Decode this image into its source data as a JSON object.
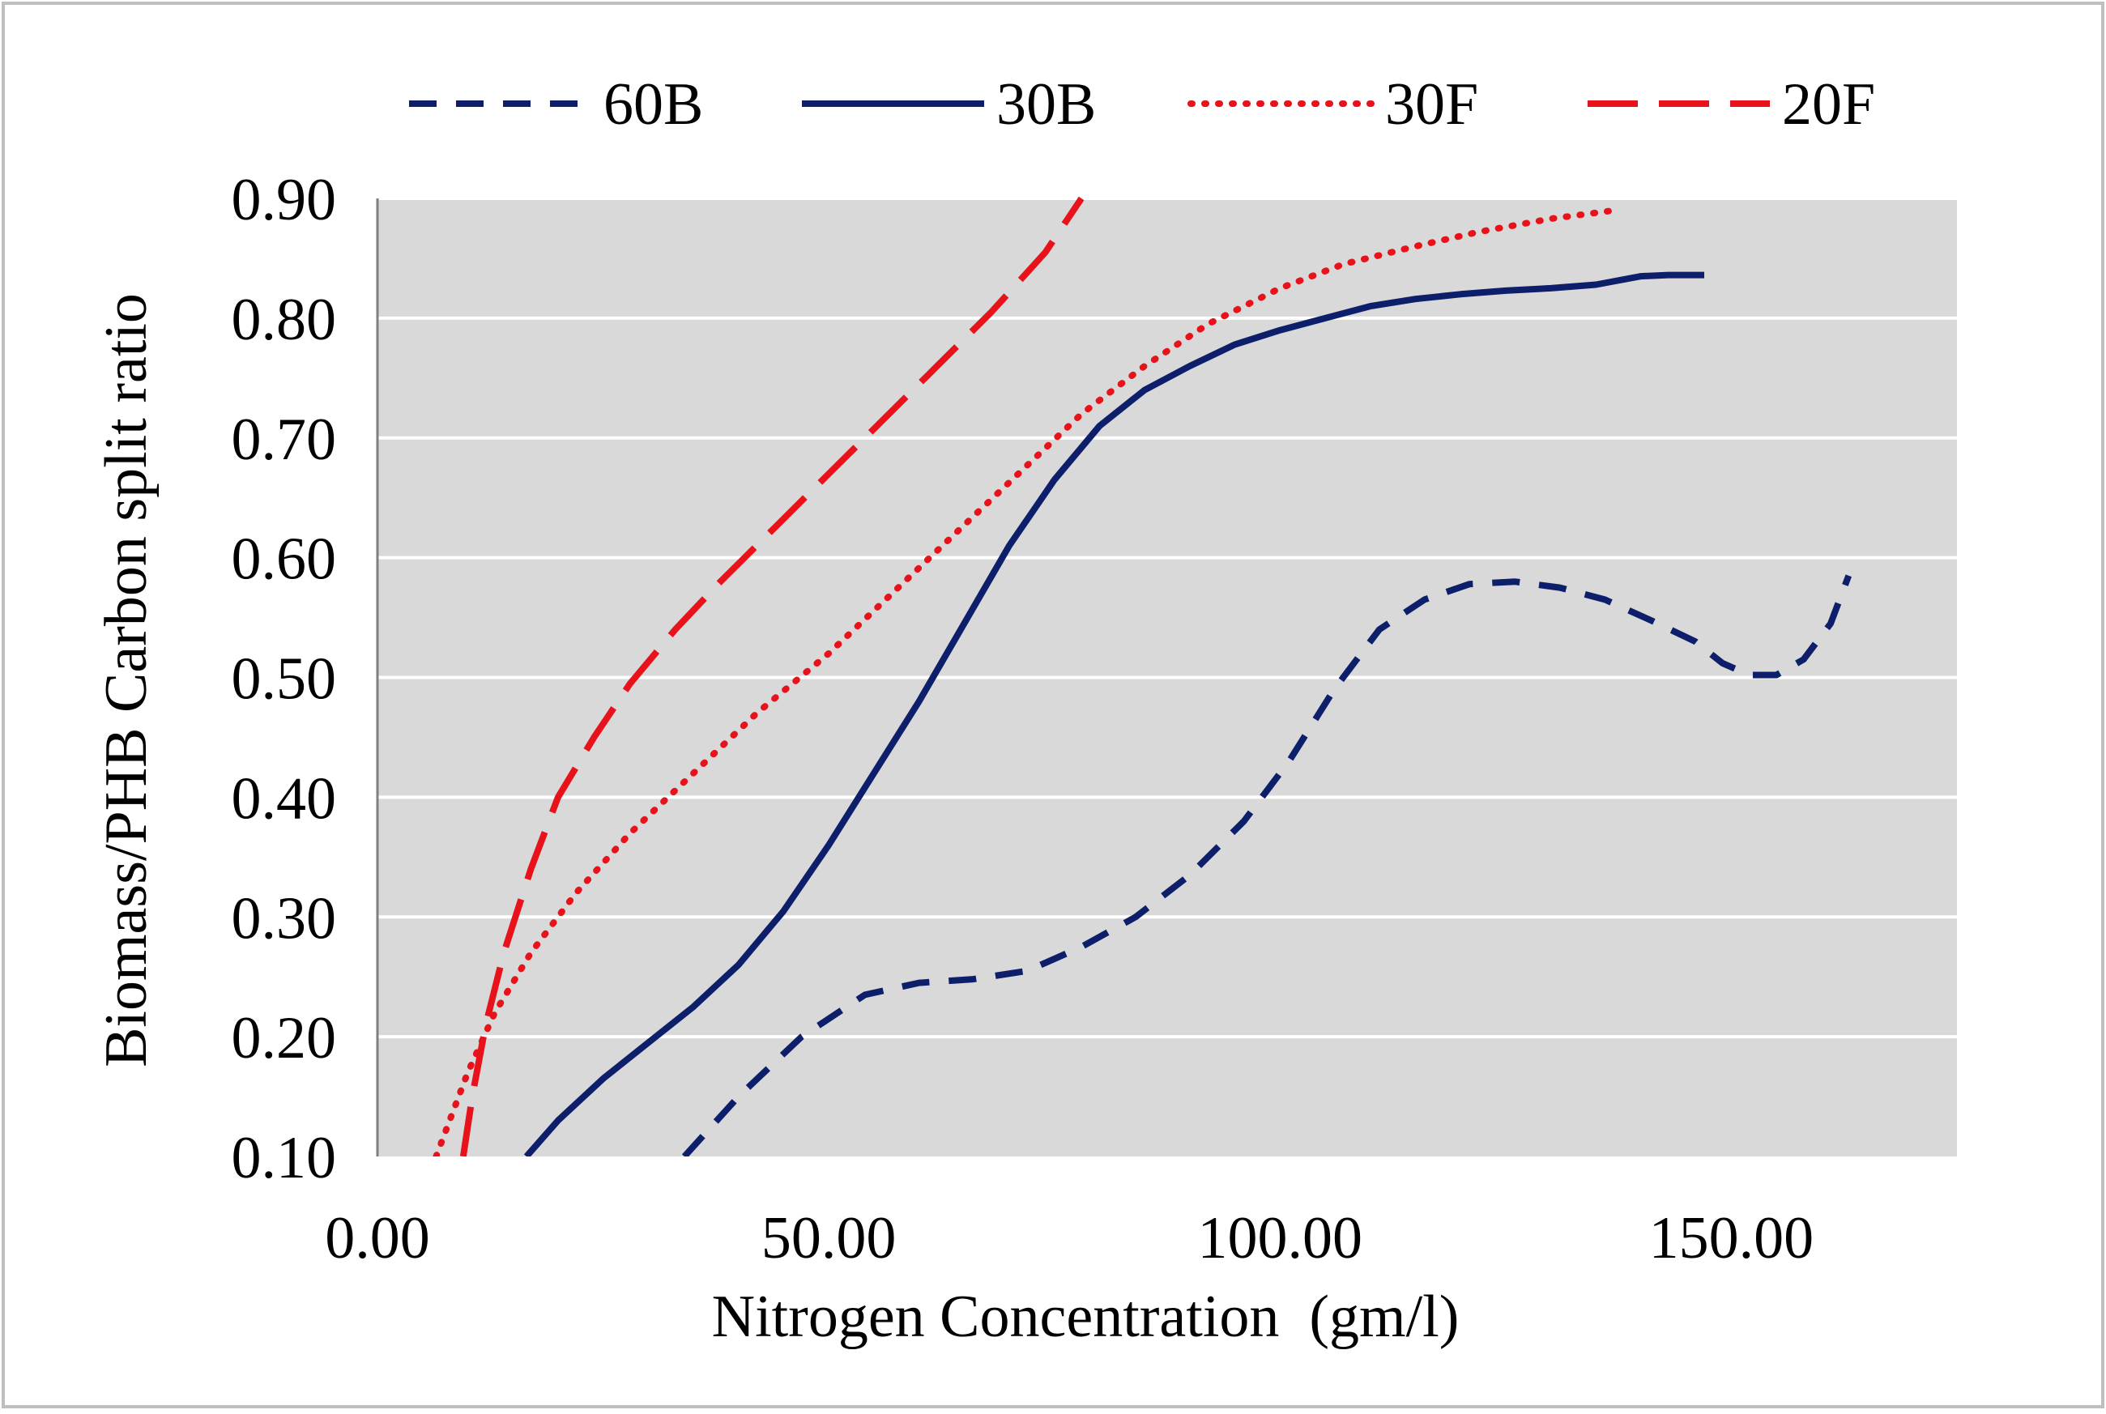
{
  "chart_data": {
    "type": "line",
    "title": "",
    "xlabel": "Nitrogen Concentration  (gm/l)",
    "ylabel": "Biomass/PHB Carbon split ratio",
    "xlim": [
      0,
      175
    ],
    "ylim": [
      0.1,
      0.9
    ],
    "x_ticks": [
      0,
      50,
      100,
      150
    ],
    "x_tick_labels": [
      "0.00",
      "50.00",
      "100.00",
      "150.00"
    ],
    "y_ticks": [
      0.1,
      0.2,
      0.3,
      0.4,
      0.5,
      0.6,
      0.7,
      0.8,
      0.9
    ],
    "y_tick_labels": [
      "0.10",
      "0.20",
      "0.30",
      "0.40",
      "0.50",
      "0.60",
      "0.70",
      "0.80",
      "0.90"
    ],
    "grid": "horizontal",
    "plot_background": "#d9d9d9",
    "legend_position": "top",
    "series": [
      {
        "name": "60B",
        "color": "#0d1f6b",
        "style": "dash",
        "points": [
          [
            34,
            0.1
          ],
          [
            40,
            0.15
          ],
          [
            47,
            0.2
          ],
          [
            54,
            0.235
          ],
          [
            60,
            0.245
          ],
          [
            66,
            0.248
          ],
          [
            72,
            0.255
          ],
          [
            78,
            0.275
          ],
          [
            84,
            0.3
          ],
          [
            90,
            0.335
          ],
          [
            96,
            0.38
          ],
          [
            101,
            0.43
          ],
          [
            106,
            0.49
          ],
          [
            111,
            0.54
          ],
          [
            116,
            0.565
          ],
          [
            121,
            0.578
          ],
          [
            126,
            0.58
          ],
          [
            131,
            0.575
          ],
          [
            136,
            0.565
          ],
          [
            141,
            0.548
          ],
          [
            146,
            0.53
          ],
          [
            149,
            0.512
          ],
          [
            152,
            0.502
          ],
          [
            155,
            0.502
          ],
          [
            158,
            0.515
          ],
          [
            161,
            0.545
          ],
          [
            163,
            0.585
          ]
        ]
      },
      {
        "name": "30B",
        "color": "#0d1f6b",
        "style": "solid",
        "points": [
          [
            16.5,
            0.1
          ],
          [
            20,
            0.13
          ],
          [
            25,
            0.165
          ],
          [
            30,
            0.195
          ],
          [
            35,
            0.225
          ],
          [
            40,
            0.26
          ],
          [
            45,
            0.305
          ],
          [
            50,
            0.36
          ],
          [
            55,
            0.42
          ],
          [
            60,
            0.48
          ],
          [
            65,
            0.545
          ],
          [
            70,
            0.61
          ],
          [
            75,
            0.665
          ],
          [
            80,
            0.71
          ],
          [
            85,
            0.74
          ],
          [
            90,
            0.76
          ],
          [
            95,
            0.778
          ],
          [
            100,
            0.79
          ],
          [
            105,
            0.8
          ],
          [
            110,
            0.81
          ],
          [
            115,
            0.816
          ],
          [
            120,
            0.82
          ],
          [
            125,
            0.823
          ],
          [
            130,
            0.825
          ],
          [
            135,
            0.828
          ],
          [
            140,
            0.835
          ],
          [
            143,
            0.836
          ],
          [
            147,
            0.836
          ]
        ]
      },
      {
        "name": "30F",
        "color": "#e8121b",
        "style": "dot",
        "points": [
          [
            6.5,
            0.1
          ],
          [
            8,
            0.13
          ],
          [
            10,
            0.17
          ],
          [
            13,
            0.22
          ],
          [
            17,
            0.27
          ],
          [
            22,
            0.32
          ],
          [
            28,
            0.37
          ],
          [
            35,
            0.42
          ],
          [
            42,
            0.47
          ],
          [
            50,
            0.52
          ],
          [
            57,
            0.57
          ],
          [
            64,
            0.62
          ],
          [
            71,
            0.67
          ],
          [
            78,
            0.72
          ],
          [
            85,
            0.76
          ],
          [
            92,
            0.795
          ],
          [
            100,
            0.825
          ],
          [
            107,
            0.845
          ],
          [
            115,
            0.86
          ],
          [
            122,
            0.872
          ],
          [
            130,
            0.883
          ],
          [
            137,
            0.89
          ]
        ]
      },
      {
        "name": "20F",
        "color": "#e8121b",
        "style": "longdash",
        "points": [
          [
            9.5,
            0.1
          ],
          [
            10.5,
            0.15
          ],
          [
            12,
            0.21
          ],
          [
            14,
            0.27
          ],
          [
            17,
            0.34
          ],
          [
            20,
            0.4
          ],
          [
            24,
            0.45
          ],
          [
            28,
            0.495
          ],
          [
            33,
            0.54
          ],
          [
            38,
            0.58
          ],
          [
            44,
            0.625
          ],
          [
            50,
            0.67
          ],
          [
            56,
            0.715
          ],
          [
            62,
            0.76
          ],
          [
            68,
            0.805
          ],
          [
            74,
            0.855
          ],
          [
            78,
            0.9
          ]
        ]
      }
    ]
  }
}
